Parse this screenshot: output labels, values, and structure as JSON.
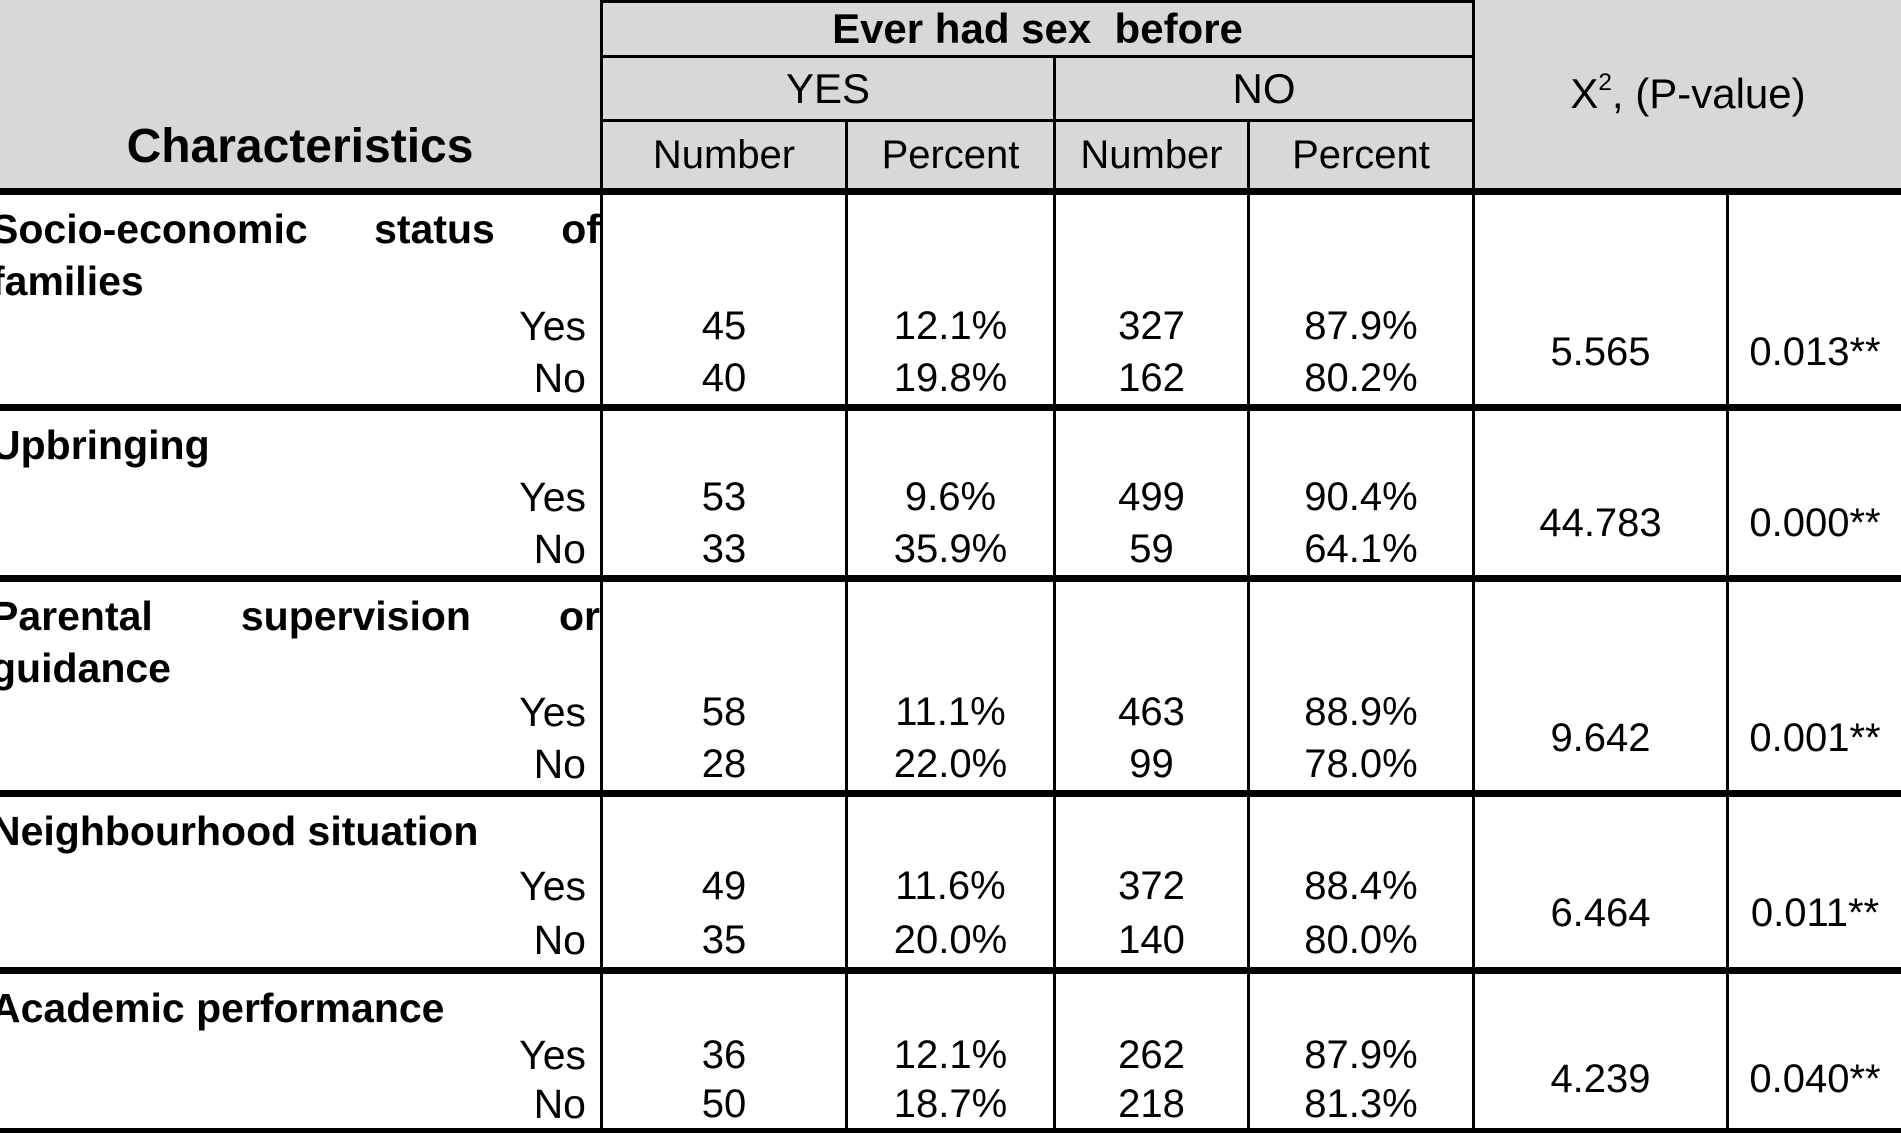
{
  "header": {
    "characteristics_label": "Characteristics",
    "group_title": "Ever had sex  before",
    "yes_group": "YES",
    "no_group": "NO",
    "yes_number": "Number",
    "yes_percent": "Percent",
    "no_number": "Number",
    "no_percent": "Percent",
    "chi_header": {
      "base": "X",
      "sup": "2",
      "rest": ", (P-value)"
    }
  },
  "colors": {
    "header_bg": "#d8d8d8",
    "border": "#000000",
    "body_bg": "#ffffff",
    "text": "#000000"
  },
  "sections": [
    {
      "label_lines": [
        [
          "Socio-economic",
          "status",
          "of"
        ],
        "families"
      ],
      "rows": [
        {
          "level": "Yes",
          "yes_number": "45",
          "yes_percent": "12.1%",
          "no_number": "327",
          "no_percent": "87.9%"
        },
        {
          "level": "No",
          "yes_number": "40",
          "yes_percent": "19.8%",
          "no_number": "162",
          "no_percent": "80.2%"
        }
      ],
      "chi_square": "5.565",
      "p_value": "0.013**"
    },
    {
      "label_lines": [
        "Upbringing"
      ],
      "rows": [
        {
          "level": "Yes",
          "yes_number": "53",
          "yes_percent": "9.6%",
          "no_number": "499",
          "no_percent": "90.4%"
        },
        {
          "level": "No",
          "yes_number": "33",
          "yes_percent": "35.9%",
          "no_number": "59",
          "no_percent": "64.1%"
        }
      ],
      "chi_square": "44.783",
      "p_value": "0.000**"
    },
    {
      "label_lines": [
        [
          "Parental",
          "supervision",
          "or"
        ],
        "guidance"
      ],
      "rows": [
        {
          "level": "Yes",
          "yes_number": "58",
          "yes_percent": "11.1%",
          "no_number": "463",
          "no_percent": "88.9%"
        },
        {
          "level": "No",
          "yes_number": "28",
          "yes_percent": "22.0%",
          "no_number": "99",
          "no_percent": "78.0%"
        }
      ],
      "chi_square": "9.642",
      "p_value": "0.001**"
    },
    {
      "label_lines": [
        "Neighbourhood situation"
      ],
      "rows": [
        {
          "level": "Yes",
          "yes_number": "49",
          "yes_percent": "11.6%",
          "no_number": "372",
          "no_percent": "88.4%"
        },
        {
          "level": "No",
          "yes_number": "35",
          "yes_percent": "20.0%",
          "no_number": "140",
          "no_percent": "80.0%"
        }
      ],
      "chi_square": "6.464",
      "p_value": "0.011**"
    },
    {
      "label_lines": [
        "Academic performance"
      ],
      "rows": [
        {
          "level": "Yes",
          "yes_number": "36",
          "yes_percent": "12.1%",
          "no_number": "262",
          "no_percent": "87.9%"
        },
        {
          "level": "No",
          "yes_number": "50",
          "yes_percent": "18.7%",
          "no_number": "218",
          "no_percent": "81.3%"
        }
      ],
      "chi_square": "4.239",
      "p_value": "0.040**"
    }
  ]
}
